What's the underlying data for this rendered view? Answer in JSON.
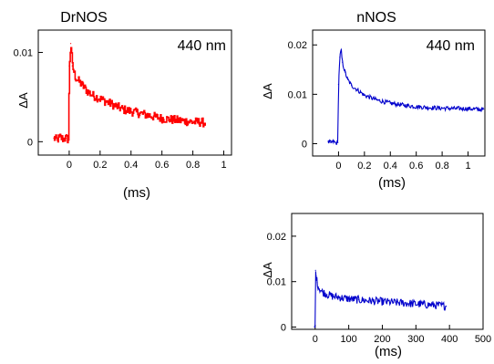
{
  "chart_data": [
    {
      "type": "line",
      "title": "DrNOS",
      "annotation": "440 nm",
      "xlabel": "(ms)",
      "ylabel": "ΔA",
      "color": "#ff0000",
      "xlim": [
        -0.2,
        1.05
      ],
      "ylim": [
        -0.0015,
        0.0125
      ],
      "xticks": [
        {
          "v": 0,
          "t": "0"
        },
        {
          "v": 0.2,
          "t": "0.2"
        },
        {
          "v": 0.4,
          "t": "0.4"
        },
        {
          "v": 0.6,
          "t": "0.6"
        },
        {
          "v": 0.8,
          "t": "0.8"
        },
        {
          "v": 1.0,
          "t": "1"
        }
      ],
      "yticks": [
        {
          "v": 0,
          "t": "0"
        },
        {
          "v": 0.01,
          "t": "0.01"
        }
      ],
      "series": [
        {
          "x": [
            -0.1,
            -0.08,
            -0.06,
            -0.04,
            -0.02,
            -0.005,
            0.0,
            0.01,
            0.02,
            0.03,
            0.04,
            0.06,
            0.08,
            0.1,
            0.12,
            0.15,
            0.2,
            0.25,
            0.3,
            0.35,
            0.4,
            0.45,
            0.5,
            0.55,
            0.6,
            0.65,
            0.7,
            0.75,
            0.8,
            0.85,
            0.88
          ],
          "y": [
            0.0004,
            0.0002,
            0.0005,
            0.0003,
            0.0004,
            0.0002,
            0.0085,
            0.011,
            0.0085,
            0.0078,
            0.0072,
            0.0068,
            0.0064,
            0.006,
            0.0056,
            0.0052,
            0.0048,
            0.0044,
            0.004,
            0.0036,
            0.0034,
            0.0032,
            0.003,
            0.0028,
            0.0026,
            0.0025,
            0.0024,
            0.0023,
            0.0022,
            0.0022,
            0.0021
          ]
        }
      ]
    },
    {
      "type": "line",
      "title": "nNOS",
      "annotation": "440 nm",
      "xlabel": "(ms)",
      "ylabel": "ΔA",
      "color": "#0000cc",
      "xlim": [
        -0.2,
        1.13
      ],
      "ylim": [
        -0.0025,
        0.023
      ],
      "xticks": [
        {
          "v": 0,
          "t": "0"
        },
        {
          "v": 0.2,
          "t": "0.2"
        },
        {
          "v": 0.4,
          "t": "0.4"
        },
        {
          "v": 0.6,
          "t": "0.6"
        },
        {
          "v": 0.8,
          "t": "0.8"
        },
        {
          "v": 1.0,
          "t": "1"
        }
      ],
      "yticks": [
        {
          "v": 0,
          "t": "0"
        },
        {
          "v": 0.01,
          "t": "0.01"
        },
        {
          "v": 0.02,
          "t": "0.02"
        }
      ],
      "series": [
        {
          "x": [
            -0.08,
            -0.06,
            -0.04,
            -0.02,
            -0.005,
            0.0,
            0.01,
            0.02,
            0.03,
            0.05,
            0.07,
            0.1,
            0.15,
            0.2,
            0.3,
            0.4,
            0.5,
            0.6,
            0.7,
            0.8,
            0.9,
            1.0,
            1.05,
            1.1,
            1.12
          ],
          "y": [
            0.0003,
            0.0002,
            0.0004,
            0.0001,
            0.0002,
            0.012,
            0.0175,
            0.019,
            0.0165,
            0.0145,
            0.013,
            0.0118,
            0.0108,
            0.0098,
            0.0088,
            0.0082,
            0.0078,
            0.0075,
            0.0073,
            0.0072,
            0.0071,
            0.0071,
            0.007,
            0.0069,
            0.007
          ]
        }
      ]
    },
    {
      "type": "line",
      "title": "",
      "annotation": "",
      "xlabel": "(ms)",
      "ylabel": "ΔA",
      "color": "#0000cc",
      "xlim": [
        -70,
        500
      ],
      "ylim": [
        -0.0005,
        0.025
      ],
      "xticks": [
        {
          "v": 0,
          "t": "0"
        },
        {
          "v": 100,
          "t": "100"
        },
        {
          "v": 200,
          "t": "200"
        },
        {
          "v": 300,
          "t": "300"
        },
        {
          "v": 400,
          "t": "400"
        },
        {
          "v": 500,
          "t": "500"
        }
      ],
      "yticks": [
        {
          "v": 0,
          "t": "0"
        },
        {
          "v": 0.01,
          "t": "0.01"
        },
        {
          "v": 0.02,
          "t": "0.02"
        }
      ],
      "series": [
        {
          "x": [
            -2,
            0,
            1,
            3,
            6,
            10,
            20,
            35,
            50,
            75,
            100,
            130,
            160,
            200,
            240,
            280,
            320,
            360,
            390
          ],
          "y": [
            0,
            0,
            0.0125,
            0.0112,
            0.0098,
            0.0088,
            0.0078,
            0.0072,
            0.0068,
            0.0065,
            0.0062,
            0.006,
            0.0058,
            0.0056,
            0.0054,
            0.0052,
            0.005,
            0.0048,
            0.0046
          ]
        }
      ]
    }
  ]
}
